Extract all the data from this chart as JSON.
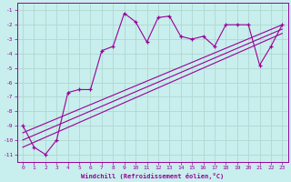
{
  "xlabel": "Windchill (Refroidissement éolien,°C)",
  "bg_color": "#c8eeed",
  "grid_color": "#b0d8d0",
  "line_color": "#990099",
  "xlim": [
    -0.5,
    23.5
  ],
  "ylim": [
    -11.5,
    -0.5
  ],
  "yticks": [
    -1,
    -2,
    -3,
    -4,
    -5,
    -6,
    -7,
    -8,
    -9,
    -10,
    -11
  ],
  "xticks": [
    0,
    1,
    2,
    3,
    4,
    5,
    6,
    7,
    8,
    9,
    10,
    11,
    12,
    13,
    14,
    15,
    16,
    17,
    18,
    19,
    20,
    21,
    22,
    23
  ],
  "series1_x": [
    0,
    1,
    2,
    3,
    4,
    5,
    6,
    7,
    8,
    9,
    10,
    11,
    12,
    13,
    14,
    15,
    16,
    17,
    18,
    19,
    20,
    21,
    22,
    23
  ],
  "series1_y": [
    -9.0,
    -10.5,
    -11.0,
    -10.0,
    -6.7,
    -6.5,
    -6.5,
    -3.8,
    -3.5,
    -1.2,
    -1.8,
    -3.2,
    -1.5,
    -1.4,
    -2.8,
    -3.0,
    -2.8,
    -3.5,
    -2.0,
    -2.0,
    -2.0,
    -4.8,
    -3.5,
    -2.0
  ],
  "trend1_x": [
    0,
    23
  ],
  "trend1_y": [
    -9.5,
    -2.0
  ],
  "trend2_x": [
    0,
    23
  ],
  "trend2_y": [
    -10.0,
    -2.3
  ],
  "trend3_x": [
    0,
    23
  ],
  "trend3_y": [
    -10.5,
    -2.6
  ]
}
